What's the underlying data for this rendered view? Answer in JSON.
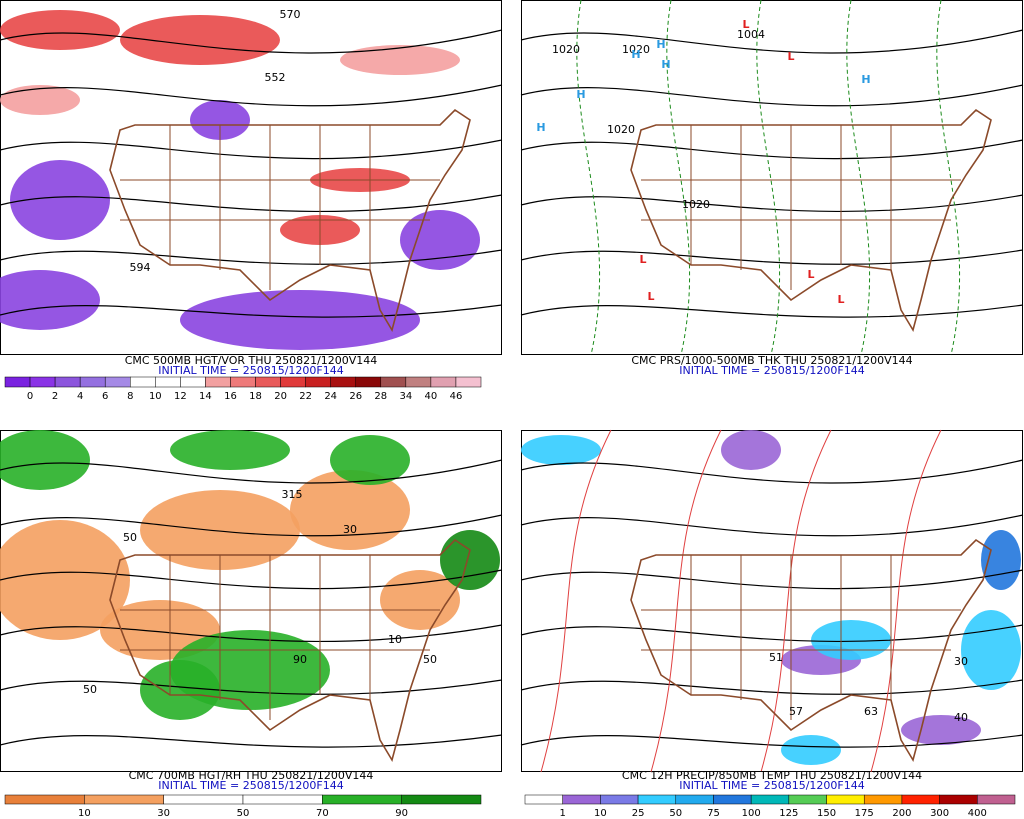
{
  "panels": [
    {
      "title": "CMC 500MB HGT/VOR THU 250821/1200V144",
      "initial_time": "INITIAL TIME = 250815/1200F144",
      "colorbar": {
        "labels": [
          "0",
          "2",
          "4",
          "6",
          "8",
          "10",
          "12",
          "14",
          "16",
          "18",
          "20",
          "22",
          "24",
          "26",
          "28",
          "34",
          "40",
          "46"
        ],
        "colors": [
          "#7a22e0",
          "#8a33e6",
          "#8c55dd",
          "#9470e0",
          "#a58ae6",
          "#ffffff",
          "#ffffff",
          "#ffffff",
          "#f2a0a0",
          "#ee7a7a",
          "#e85a5a",
          "#e03a3a",
          "#c82020",
          "#a81010",
          "#8a0808",
          "#a05050",
          "#c08080",
          "#e0a0b0",
          "#f4c0d0"
        ]
      },
      "map_labels": [
        "570",
        "552",
        "594"
      ]
    },
    {
      "title": "CMC PRS/1000-500MB THK THU 250821/1200V144",
      "initial_time": "INITIAL TIME = 250815/1200F144",
      "colorbar": null,
      "map_labels": [
        "1020",
        "1020",
        "1004",
        "1020",
        "1020",
        "H",
        "H",
        "H",
        "H",
        "H",
        "H",
        "L",
        "L",
        "L",
        "L",
        "L",
        "L"
      ]
    },
    {
      "title": "CMC 700MB HGT/RH THU 250821/1200V144",
      "initial_time": "INITIAL TIME = 250815/1200F144",
      "colorbar": {
        "labels": [
          "10",
          "30",
          "50",
          "70",
          "90"
        ],
        "colors": [
          "#e8803a",
          "#f4a060",
          "#ffffff",
          "#ffffff",
          "#28b028",
          "#148a14"
        ]
      },
      "map_labels": [
        "315",
        "50",
        "50",
        "50",
        "10",
        "90",
        "30"
      ]
    },
    {
      "title": "CMC 12H PRECIP/850MB TEMP THU 250821/1200V144",
      "initial_time": "INITIAL TIME = 250815/1200F144",
      "colorbar": {
        "labels": [
          "1",
          "10",
          "25",
          "50",
          "75",
          "100",
          "125",
          "150",
          "175",
          "200",
          "300",
          "400"
        ],
        "colors": [
          "#ffffff",
          "#9a66d6",
          "#7a7ae6",
          "#33ccff",
          "#22aaee",
          "#2277dd",
          "#00b8b8",
          "#55cc55",
          "#ffee00",
          "#ff9900",
          "#ff2200",
          "#aa0000",
          "#c06090"
        ]
      },
      "map_labels": [
        "51",
        "63",
        "40",
        "57",
        "30"
      ]
    }
  ]
}
